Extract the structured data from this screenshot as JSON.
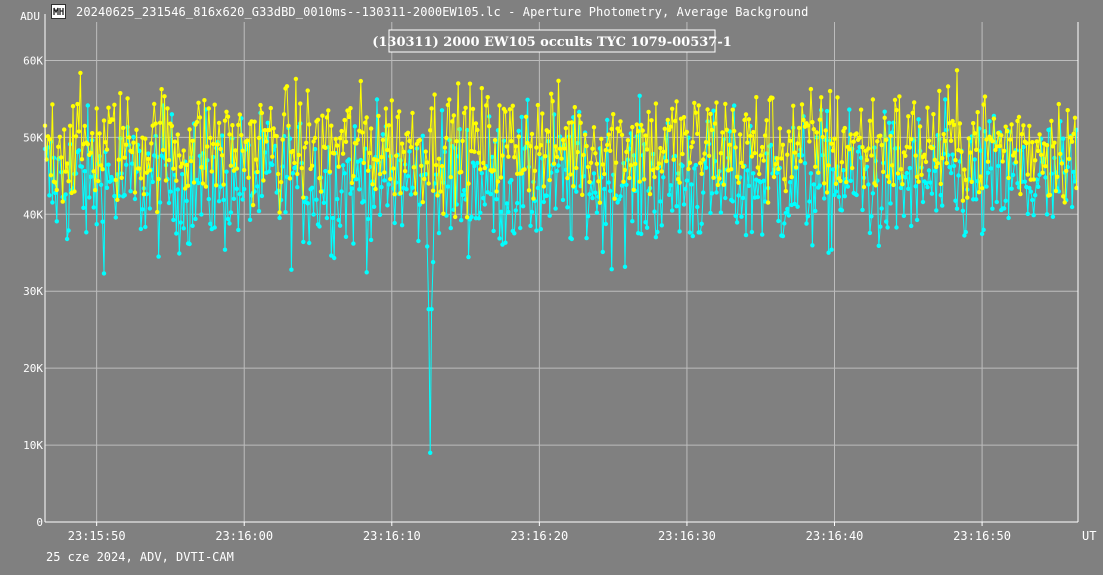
{
  "window": {
    "title": "20240625_231546_816x620_G33dBD_0010ms--130311-2000EW105.lc - Aperture Photometry, Average Background",
    "icon": "lightcurve-app-icon"
  },
  "footer": {
    "note": "25 cze 2024, ADV, DVTI-CAM"
  },
  "colors": {
    "background": "#808080",
    "grid": "#bdbdbd",
    "axis": "#ffffff",
    "target_series": "#00ffff",
    "comparison_series": "#ffff00"
  },
  "chart_data": {
    "type": "line",
    "title": "(130311) 2000 EW105 occults TYC 1079-00537-1",
    "ylabel": "ADU",
    "xlabel": "UT",
    "ylim": [
      0,
      65000
    ],
    "xlim": [
      "23:15:46.5",
      "23:16:56.5"
    ],
    "y_ticks": [
      {
        "value": 0,
        "label": "0"
      },
      {
        "value": 10000,
        "label": "10K"
      },
      {
        "value": 20000,
        "label": "20K"
      },
      {
        "value": 30000,
        "label": "30K"
      },
      {
        "value": 40000,
        "label": "40K"
      },
      {
        "value": 50000,
        "label": "50K"
      },
      {
        "value": 60000,
        "label": "60K"
      }
    ],
    "x_ticks": [
      {
        "value": "23:15:50",
        "label": "23:15:50"
      },
      {
        "value": "23:16:00",
        "label": "23:16:00"
      },
      {
        "value": "23:16:10",
        "label": "23:16:10"
      },
      {
        "value": "23:16:20",
        "label": "23:16:20"
      },
      {
        "value": "23:16:30",
        "label": "23:16:30"
      },
      {
        "value": "23:16:40",
        "label": "23:16:40"
      },
      {
        "value": "23:16:50",
        "label": "23:16:50"
      }
    ],
    "grid": true,
    "series": [
      {
        "color": "#00ffff",
        "mean": 44000,
        "scatter": 4500,
        "event": {
          "time": "23:16:12.6",
          "min": 9000
        }
      },
      {
        "color": "#ffff00",
        "mean": 49000,
        "scatter": 3800
      }
    ]
  }
}
